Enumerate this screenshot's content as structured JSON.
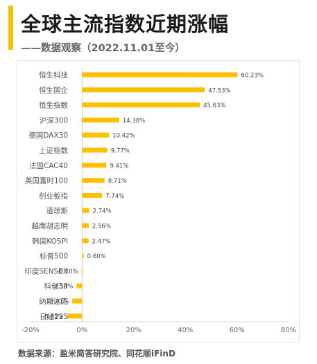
{
  "header": {
    "title": "全球主流指数近期涨幅",
    "subtitle": "——数据观察（2022.11.01至今）"
  },
  "footer": {
    "source": "数据来源：盈米简答研究院、同花顺iFinD"
  },
  "colors": {
    "accent": "#f5c400",
    "bar": "#fdbf00"
  },
  "chart_data": {
    "type": "bar",
    "orientation": "horizontal",
    "categories": [
      "恒生科技",
      "恒生国企",
      "恒生指数",
      "沪深300",
      "德国DAX30",
      "上证指数",
      "法国CAC40",
      "英国富时100",
      "创业板指",
      "道琼斯",
      "越南胡志明",
      "韩国KOSPI",
      "标普500",
      "印度SENSEX",
      "科创50",
      "纳斯达克",
      "日经225"
    ],
    "values": [
      60.23,
      47.53,
      45.63,
      14.38,
      10.42,
      9.77,
      9.41,
      8.71,
      7.74,
      2.74,
      2.56,
      2.47,
      0.6,
      -0.2,
      -2.14,
      -3.81,
      -5.85
    ],
    "value_labels": [
      "60.23%",
      "47.53%",
      "45.63%",
      "14.38%",
      "10.42%",
      "9.77%",
      "9.41%",
      "8.71%",
      "7.74%",
      "2.74%",
      "2.56%",
      "2.47%",
      "0.60%",
      "-0.20%",
      "-2.14%",
      "-3.81%",
      "-5.85%"
    ],
    "xlim": [
      -20,
      80
    ],
    "xticks": [
      -20,
      0,
      20,
      40,
      60,
      80
    ],
    "xtick_labels": [
      "-20%",
      "0%",
      "20%",
      "40%",
      "60%",
      "80%"
    ],
    "grid": false,
    "legend": "none"
  }
}
